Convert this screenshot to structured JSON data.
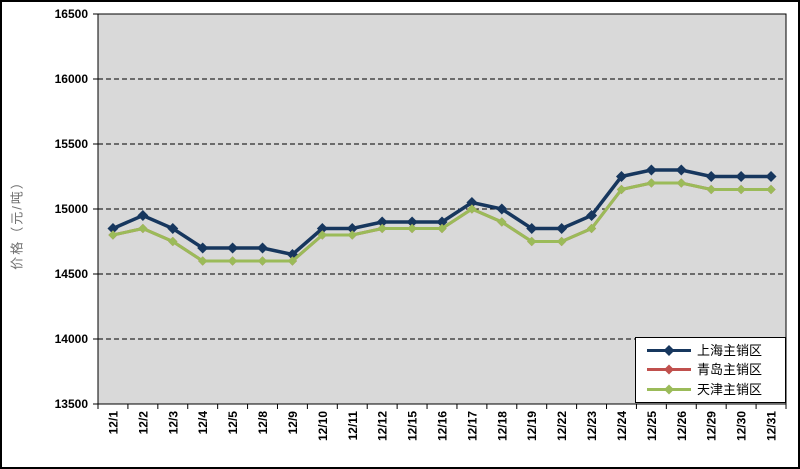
{
  "chart_data": {
    "type": "line",
    "title": "",
    "ylabel": "价格（元/吨）",
    "xlabel": "",
    "ylim": [
      13500,
      16500
    ],
    "yticks": [
      13500,
      14000,
      14500,
      15000,
      15500,
      16000,
      16500
    ],
    "grid": "horizontal-dashed",
    "legend_position": "inside-bottom-right",
    "marker": "diamond",
    "plot_bg": "#d9d9d9",
    "categories": [
      "12/1",
      "12/2",
      "12/3",
      "12/4",
      "12/5",
      "12/8",
      "12/9",
      "12/10",
      "12/11",
      "12/12",
      "12/15",
      "12/16",
      "12/17",
      "12/18",
      "12/19",
      "12/22",
      "12/23",
      "12/24",
      "12/25",
      "12/26",
      "12/29",
      "12/30",
      "12/31"
    ],
    "series": [
      {
        "name": "上海主销区",
        "color": "#17375e",
        "values": [
          14850,
          14950,
          14850,
          14700,
          14700,
          14700,
          14650,
          14850,
          14850,
          14900,
          14900,
          14900,
          15050,
          15000,
          14850,
          14850,
          14950,
          15250,
          15300,
          15300,
          15250,
          15250,
          15250
        ]
      },
      {
        "name": "青岛主销区",
        "color": "#c0504d",
        "values": [
          14800,
          14850,
          14750,
          14600,
          14600,
          14600,
          14600,
          14800,
          14800,
          14850,
          14850,
          14850,
          15000,
          14900,
          14750,
          14750,
          14850,
          15150,
          15200,
          15200,
          15150,
          15150,
          15150
        ],
        "note": "line fully overlapped by 天津主销区 series in plot"
      },
      {
        "name": "天津主销区",
        "color": "#9bbb59",
        "values": [
          14800,
          14850,
          14750,
          14600,
          14600,
          14600,
          14600,
          14800,
          14800,
          14850,
          14850,
          14850,
          15000,
          14900,
          14750,
          14750,
          14850,
          15150,
          15200,
          15200,
          15150,
          15150,
          15150
        ]
      }
    ]
  }
}
